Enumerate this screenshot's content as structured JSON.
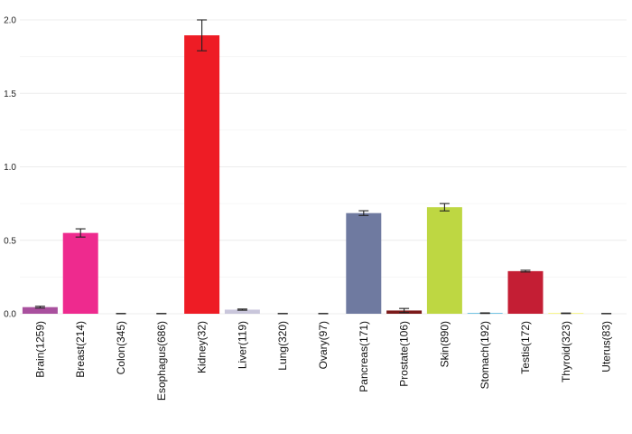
{
  "chart_data": {
    "type": "bar",
    "categories": [
      "Brain(1259)",
      "Breast(214)",
      "Colon(345)",
      "Esophagus(686)",
      "Kidney(32)",
      "Liver(119)",
      "Lung(320)",
      "Ovary(97)",
      "Pancreas(171)",
      "Prostate(106)",
      "Skin(890)",
      "Stomach(192)",
      "Testis(172)",
      "Thyroid(323)",
      "Uterus(83)"
    ],
    "values": [
      0.045,
      0.55,
      0.0,
      0.0,
      1.895,
      0.028,
      0.0,
      0.0,
      0.685,
      0.022,
      0.725,
      0.004,
      0.29,
      0.003,
      0.0
    ],
    "errors": [
      0.006,
      0.028,
      0.002,
      0.002,
      0.105,
      0.004,
      0.002,
      0.002,
      0.016,
      0.014,
      0.025,
      0.002,
      0.006,
      0.002,
      0.002
    ],
    "colors": [
      "#a9509e",
      "#ee2a8e",
      "#e0e0e0",
      "#e0e0e0",
      "#ee1c25",
      "#c9c6db",
      "#e0e0e0",
      "#e0e0e0",
      "#6f7aa0",
      "#7b1a1a",
      "#bed742",
      "#2ba6d6",
      "#c41e34",
      "#f3ec19",
      "#e0e0e0"
    ],
    "yticks": [
      0.0,
      0.5,
      1.0,
      1.5,
      2.0
    ],
    "ytick_labels": [
      "0.0",
      "0.5",
      "1.0",
      "1.5",
      "2.0"
    ],
    "ylim": [
      0,
      2.0
    ],
    "title": "",
    "xlabel": "",
    "ylabel": "",
    "grid": true
  }
}
